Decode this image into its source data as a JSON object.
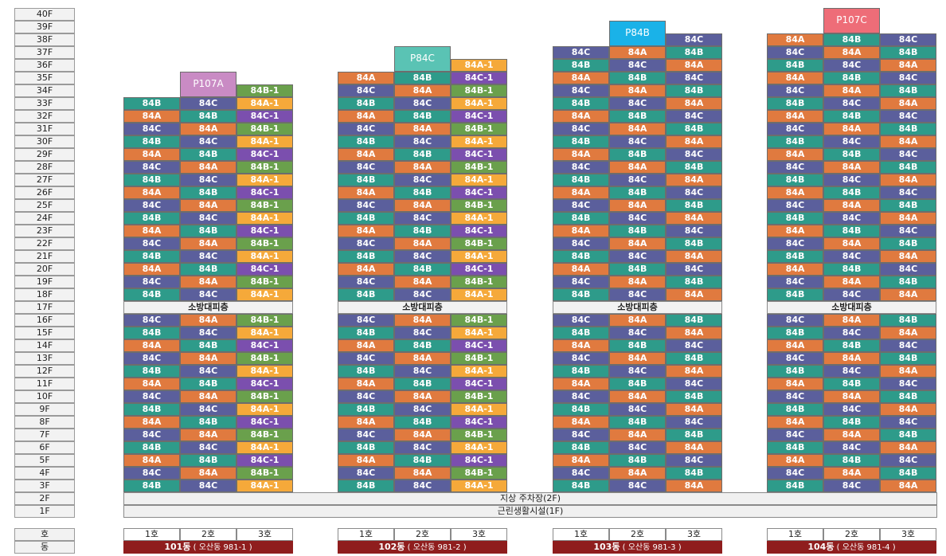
{
  "floors": [
    "40F",
    "39F",
    "38F",
    "37F",
    "36F",
    "35F",
    "34F",
    "33F",
    "32F",
    "31F",
    "30F",
    "29F",
    "28F",
    "27F",
    "26F",
    "25F",
    "24F",
    "23F",
    "22F",
    "21F",
    "20F",
    "19F",
    "18F",
    "17F",
    "16F",
    "15F",
    "14F",
    "13F",
    "12F",
    "11F",
    "10F",
    "9F",
    "8F",
    "7F",
    "6F",
    "5F",
    "4F",
    "3F",
    "2F",
    "1F"
  ],
  "row_labels": {
    "ho": "호",
    "dong": "동"
  },
  "refuge_label": "소방대피층",
  "parking_label": "지상 주차장(2F)",
  "retail_label": "근린생활시설(1F)",
  "colors": {
    "84A": "#e07a3f",
    "84B": "#2e9b8a",
    "84C": "#5b5f9c",
    "84A-1": "#f5a93a",
    "84B-1": "#6aa04c",
    "84C-1": "#7b4fae",
    "P107A": "#c98bc4",
    "P84C": "#5ac3b4",
    "P84B": "#1ab2e8",
    "P107C": "#ee6d78",
    "dong": "#8f1d1d"
  },
  "buildings": [
    {
      "id": "101",
      "name": "101동",
      "address": "( 오산동 981-1 )",
      "ho": [
        "1호",
        "2호",
        "3호"
      ],
      "penthouse": {
        "label": "P107A",
        "col": 1
      },
      "top_floor": 34,
      "extra_units": [
        {
          "floor": 34,
          "col": 2,
          "label": "84B-1"
        }
      ],
      "cycle": [
        [
          "84C",
          "84A",
          "84B-1"
        ],
        [
          "84B",
          "84C",
          "84A-1"
        ],
        [
          "84A",
          "84B",
          "84C-1"
        ]
      ],
      "cycle_start": "33F=84B"
    },
    {
      "id": "102",
      "name": "102동",
      "address": "( 오산동 981-2 )",
      "ho": [
        "1호",
        "2호",
        "3호"
      ],
      "penthouse": {
        "label": "P84C",
        "col": 1
      },
      "top_floor": 36,
      "extra_units": [
        {
          "floor": 36,
          "col": 2,
          "label": "84A-1"
        },
        {
          "floor": 35,
          "col": 0,
          "label": "84A"
        },
        {
          "floor": 35,
          "col": 1,
          "label": "84B"
        },
        {
          "floor": 35,
          "col": 2,
          "label": "84C-1"
        },
        {
          "floor": 34,
          "col": 0,
          "label": "84C"
        },
        {
          "floor": 34,
          "col": 1,
          "label": "84A"
        },
        {
          "floor": 34,
          "col": 2,
          "label": "84B-1"
        }
      ],
      "cycle": [
        [
          "84C",
          "84A",
          "84B-1"
        ],
        [
          "84B",
          "84C",
          "84A-1"
        ],
        [
          "84A",
          "84B",
          "84C-1"
        ]
      ]
    },
    {
      "id": "103",
      "name": "103동",
      "address": "( 오산동 981-3 )",
      "ho": [
        "1호",
        "2호",
        "3호"
      ],
      "penthouse": {
        "label": "P84B",
        "col": 1
      },
      "top_floor": 38,
      "extra_units": [
        {
          "floor": 38,
          "col": 2,
          "label": "84C"
        },
        {
          "floor": 37,
          "col": 0,
          "label": "84C"
        },
        {
          "floor": 37,
          "col": 1,
          "label": "84A"
        },
        {
          "floor": 37,
          "col": 2,
          "label": "84B"
        },
        {
          "floor": 36,
          "col": 0,
          "label": "84B"
        },
        {
          "floor": 36,
          "col": 1,
          "label": "84C"
        },
        {
          "floor": 36,
          "col": 2,
          "label": "84A"
        },
        {
          "floor": 35,
          "col": 0,
          "label": "84A"
        },
        {
          "floor": 35,
          "col": 1,
          "label": "84B"
        },
        {
          "floor": 35,
          "col": 2,
          "label": "84C"
        },
        {
          "floor": 34,
          "col": 0,
          "label": "84C"
        },
        {
          "floor": 34,
          "col": 1,
          "label": "84A"
        },
        {
          "floor": 34,
          "col": 2,
          "label": "84B"
        }
      ],
      "cycle": [
        [
          "84C",
          "84A",
          "84B"
        ],
        [
          "84B",
          "84C",
          "84A"
        ],
        [
          "84A",
          "84B",
          "84C"
        ]
      ]
    },
    {
      "id": "104",
      "name": "104동",
      "address": "( 오산동 981-4 )",
      "ho": [
        "1호",
        "2호",
        "3호"
      ],
      "penthouse": {
        "label": "P107C",
        "col": 1
      },
      "top_floor": 38,
      "extra_units": [
        {
          "floor": 38,
          "col": 0,
          "label": "84A"
        },
        {
          "floor": 38,
          "col": 1,
          "label": "84B"
        },
        {
          "floor": 38,
          "col": 2,
          "label": "84C"
        },
        {
          "floor": 37,
          "col": 0,
          "label": "84C"
        },
        {
          "floor": 37,
          "col": 1,
          "label": "84A"
        },
        {
          "floor": 37,
          "col": 2,
          "label": "84B"
        },
        {
          "floor": 36,
          "col": 0,
          "label": "84B"
        },
        {
          "floor": 36,
          "col": 1,
          "label": "84C"
        },
        {
          "floor": 36,
          "col": 2,
          "label": "84A"
        },
        {
          "floor": 35,
          "col": 0,
          "label": "84A"
        },
        {
          "floor": 35,
          "col": 1,
          "label": "84B"
        },
        {
          "floor": 35,
          "col": 2,
          "label": "84C"
        },
        {
          "floor": 34,
          "col": 0,
          "label": "84C"
        },
        {
          "floor": 34,
          "col": 1,
          "label": "84A"
        },
        {
          "floor": 34,
          "col": 2,
          "label": "84B"
        }
      ],
      "cycle": [
        [
          "84C",
          "84A",
          "84B"
        ],
        [
          "84B",
          "84C",
          "84A"
        ],
        [
          "84A",
          "84B",
          "84C"
        ]
      ]
    }
  ]
}
